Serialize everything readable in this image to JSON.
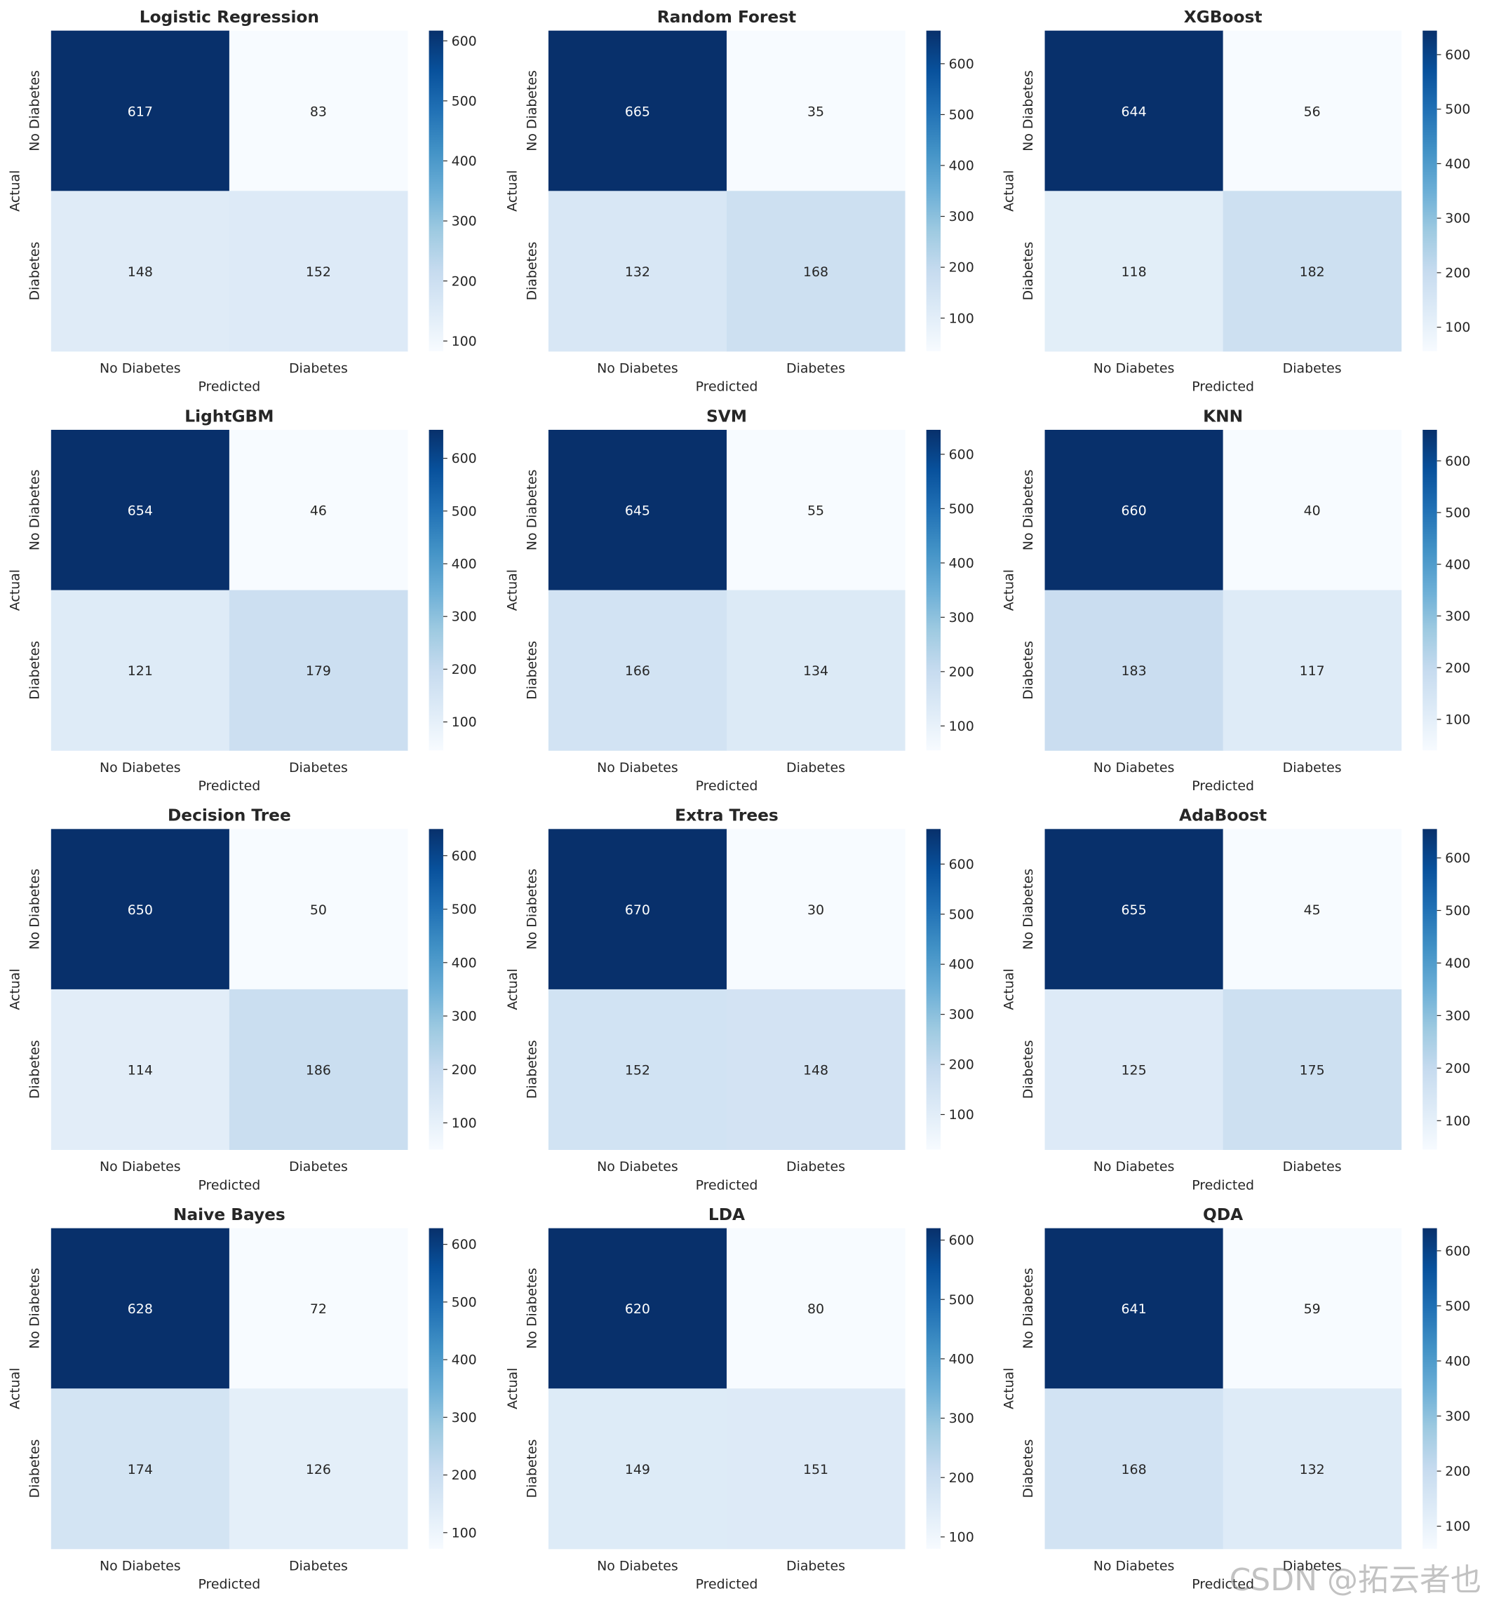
{
  "chart_data": [
    {
      "type": "heatmap",
      "title": "Logistic Regression",
      "xlabel": "Predicted",
      "ylabel": "Actual",
      "x_ticks": [
        "No Diabetes",
        "Diabetes"
      ],
      "y_ticks": [
        "No Diabetes",
        "Diabetes"
      ],
      "values": [
        [
          617,
          83
        ],
        [
          148,
          152
        ]
      ],
      "colorbar_ticks": [
        100,
        200,
        300,
        400,
        500,
        600
      ],
      "colorbar_range": [
        83,
        617
      ],
      "colormap": "Blues"
    },
    {
      "type": "heatmap",
      "title": "Random Forest",
      "xlabel": "Predicted",
      "ylabel": "Actual",
      "x_ticks": [
        "No Diabetes",
        "Diabetes"
      ],
      "y_ticks": [
        "No Diabetes",
        "Diabetes"
      ],
      "values": [
        [
          665,
          35
        ],
        [
          132,
          168
        ]
      ],
      "colorbar_ticks": [
        100,
        200,
        300,
        400,
        500,
        600
      ],
      "colorbar_range": [
        35,
        665
      ],
      "colormap": "Blues"
    },
    {
      "type": "heatmap",
      "title": "XGBoost",
      "xlabel": "Predicted",
      "ylabel": "Actual",
      "x_ticks": [
        "No Diabetes",
        "Diabetes"
      ],
      "y_ticks": [
        "No Diabetes",
        "Diabetes"
      ],
      "values": [
        [
          644,
          56
        ],
        [
          118,
          182
        ]
      ],
      "colorbar_ticks": [
        100,
        200,
        300,
        400,
        500,
        600
      ],
      "colorbar_range": [
        56,
        644
      ],
      "colormap": "Blues"
    },
    {
      "type": "heatmap",
      "title": "LightGBM",
      "xlabel": "Predicted",
      "ylabel": "Actual",
      "x_ticks": [
        "No Diabetes",
        "Diabetes"
      ],
      "y_ticks": [
        "No Diabetes",
        "Diabetes"
      ],
      "values": [
        [
          654,
          46
        ],
        [
          121,
          179
        ]
      ],
      "colorbar_ticks": [
        100,
        200,
        300,
        400,
        500,
        600
      ],
      "colorbar_range": [
        46,
        654
      ],
      "colormap": "Blues"
    },
    {
      "type": "heatmap",
      "title": "SVM",
      "xlabel": "Predicted",
      "ylabel": "Actual",
      "x_ticks": [
        "No Diabetes",
        "Diabetes"
      ],
      "y_ticks": [
        "No Diabetes",
        "Diabetes"
      ],
      "values": [
        [
          645,
          55
        ],
        [
          166,
          134
        ]
      ],
      "colorbar_ticks": [
        100,
        200,
        300,
        400,
        500,
        600
      ],
      "colorbar_range": [
        55,
        645
      ],
      "colormap": "Blues"
    },
    {
      "type": "heatmap",
      "title": "KNN",
      "xlabel": "Predicted",
      "ylabel": "Actual",
      "x_ticks": [
        "No Diabetes",
        "Diabetes"
      ],
      "y_ticks": [
        "No Diabetes",
        "Diabetes"
      ],
      "values": [
        [
          660,
          40
        ],
        [
          183,
          117
        ]
      ],
      "colorbar_ticks": [
        100,
        200,
        300,
        400,
        500,
        600
      ],
      "colorbar_range": [
        40,
        660
      ],
      "colormap": "Blues"
    },
    {
      "type": "heatmap",
      "title": "Decision Tree",
      "xlabel": "Predicted",
      "ylabel": "Actual",
      "x_ticks": [
        "No Diabetes",
        "Diabetes"
      ],
      "y_ticks": [
        "No Diabetes",
        "Diabetes"
      ],
      "values": [
        [
          650,
          50
        ],
        [
          114,
          186
        ]
      ],
      "colorbar_ticks": [
        100,
        200,
        300,
        400,
        500,
        600
      ],
      "colorbar_range": [
        50,
        650
      ],
      "colormap": "Blues"
    },
    {
      "type": "heatmap",
      "title": "Extra Trees",
      "xlabel": "Predicted",
      "ylabel": "Actual",
      "x_ticks": [
        "No Diabetes",
        "Diabetes"
      ],
      "y_ticks": [
        "No Diabetes",
        "Diabetes"
      ],
      "values": [
        [
          670,
          30
        ],
        [
          152,
          148
        ]
      ],
      "colorbar_ticks": [
        100,
        200,
        300,
        400,
        500,
        600
      ],
      "colorbar_range": [
        30,
        670
      ],
      "colormap": "Blues"
    },
    {
      "type": "heatmap",
      "title": "AdaBoost",
      "xlabel": "Predicted",
      "ylabel": "Actual",
      "x_ticks": [
        "No Diabetes",
        "Diabetes"
      ],
      "y_ticks": [
        "No Diabetes",
        "Diabetes"
      ],
      "values": [
        [
          655,
          45
        ],
        [
          125,
          175
        ]
      ],
      "colorbar_ticks": [
        100,
        200,
        300,
        400,
        500,
        600
      ],
      "colorbar_range": [
        45,
        655
      ],
      "colormap": "Blues"
    },
    {
      "type": "heatmap",
      "title": "Naive Bayes",
      "xlabel": "Predicted",
      "ylabel": "Actual",
      "x_ticks": [
        "No Diabetes",
        "Diabetes"
      ],
      "y_ticks": [
        "No Diabetes",
        "Diabetes"
      ],
      "values": [
        [
          628,
          72
        ],
        [
          174,
          126
        ]
      ],
      "colorbar_ticks": [
        100,
        200,
        300,
        400,
        500,
        600
      ],
      "colorbar_range": [
        72,
        628
      ],
      "colormap": "Blues"
    },
    {
      "type": "heatmap",
      "title": "LDA",
      "xlabel": "Predicted",
      "ylabel": "Actual",
      "x_ticks": [
        "No Diabetes",
        "Diabetes"
      ],
      "y_ticks": [
        "No Diabetes",
        "Diabetes"
      ],
      "values": [
        [
          620,
          80
        ],
        [
          149,
          151
        ]
      ],
      "colorbar_ticks": [
        100,
        200,
        300,
        400,
        500,
        600
      ],
      "colorbar_range": [
        80,
        620
      ],
      "colormap": "Blues"
    },
    {
      "type": "heatmap",
      "title": "QDA",
      "xlabel": "Predicted",
      "ylabel": "Actual",
      "x_ticks": [
        "No Diabetes",
        "Diabetes"
      ],
      "y_ticks": [
        "No Diabetes",
        "Diabetes"
      ],
      "values": [
        [
          641,
          59
        ],
        [
          168,
          132
        ]
      ],
      "colorbar_ticks": [
        100,
        200,
        300,
        400,
        500,
        600
      ],
      "colorbar_range": [
        59,
        641
      ],
      "colormap": "Blues"
    }
  ],
  "watermark": "CSDN @拓云者也"
}
